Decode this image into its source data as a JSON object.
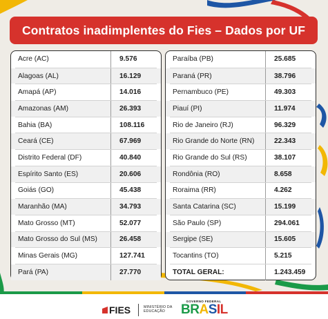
{
  "title": "Contratos inadimplentes do Fies – Dados por UF",
  "left_rows": [
    {
      "uf": "Acre (AC)",
      "value": "9.576"
    },
    {
      "uf": "Alagoas (AL)",
      "value": "16.129"
    },
    {
      "uf": "Amapá (AP)",
      "value": "14.016"
    },
    {
      "uf": "Amazonas (AM)",
      "value": "26.393"
    },
    {
      "uf": "Bahia (BA)",
      "value": "108.116"
    },
    {
      "uf": "Ceará (CE)",
      "value": "67.969"
    },
    {
      "uf": "Distrito Federal (DF)",
      "value": "40.840"
    },
    {
      "uf": "Espírito Santo (ES)",
      "value": "20.606"
    },
    {
      "uf": "Goiás (GO)",
      "value": "45.438"
    },
    {
      "uf": "Maranhão (MA)",
      "value": "34.793"
    },
    {
      "uf": "Mato Grosso (MT)",
      "value": "52.077"
    },
    {
      "uf": "Mato Grosso do Sul (MS)",
      "value": "26.458"
    },
    {
      "uf": "Minas Gerais (MG)",
      "value": "127.741"
    },
    {
      "uf": "Pará (PA)",
      "value": "27.770"
    }
  ],
  "right_rows": [
    {
      "uf": "Paraíba (PB)",
      "value": "25.685"
    },
    {
      "uf": "Paraná (PR)",
      "value": "38.796"
    },
    {
      "uf": "Pernambuco (PE)",
      "value": "49.303"
    },
    {
      "uf": "Piauí (PI)",
      "value": "11.974"
    },
    {
      "uf": "Rio de Janeiro (RJ)",
      "value": "96.329"
    },
    {
      "uf": "Rio Grande do Norte (RN)",
      "value": "22.343"
    },
    {
      "uf": "Rio Grande do Sul (RS)",
      "value": "38.107"
    },
    {
      "uf": "Rondônia (RO)",
      "value": "8.658"
    },
    {
      "uf": "Roraima (RR)",
      "value": "4.262"
    },
    {
      "uf": "Santa Catarina (SC)",
      "value": "15.199"
    },
    {
      "uf": "São Paulo (SP)",
      "value": "294.061"
    },
    {
      "uf": "Sergipe (SE)",
      "value": "15.605"
    },
    {
      "uf": "Tocantins (TO)",
      "value": "5.215"
    }
  ],
  "total": {
    "label": "TOTAL GERAL:",
    "value": "1.243.459"
  },
  "footer": {
    "fies_logo": "FIES",
    "ministry_line1": "MINISTÉRIO DA",
    "ministry_line2": "EDUCAÇÃO",
    "gov_label": "GOVERNO FEDERAL",
    "brasil": [
      "BR",
      "A",
      "S",
      "IL"
    ]
  },
  "colors": {
    "title_bg": "#d6322c",
    "background": "#efece6",
    "accent_yellow": "#f2b705",
    "accent_green": "#1b9a48",
    "accent_blue": "#1e56a5"
  },
  "icons": [
    "fies-logo-mark",
    "governo-federal-brasil-logo"
  ]
}
